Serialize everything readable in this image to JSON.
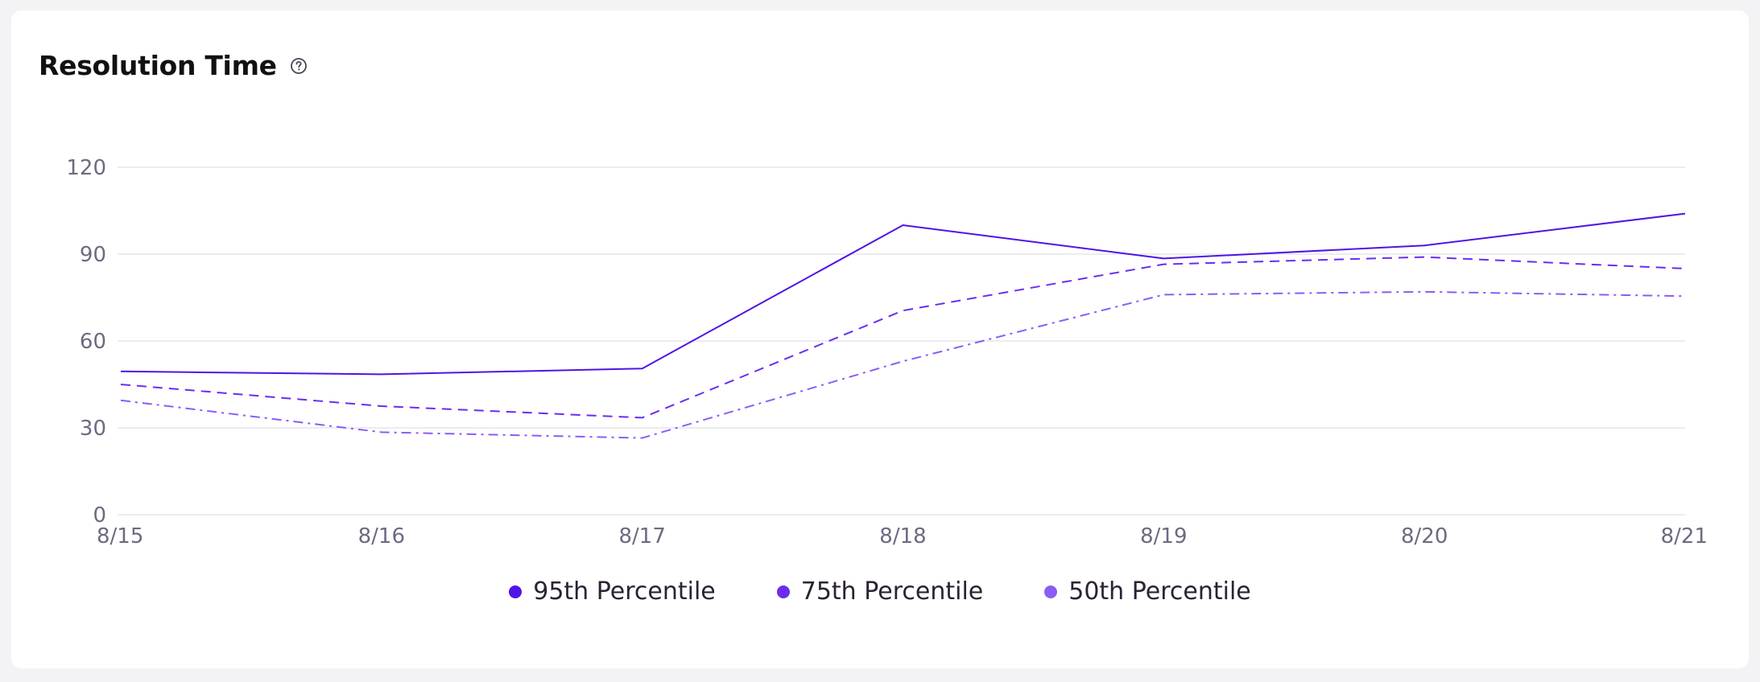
{
  "widget": {
    "title": "Resolution Time",
    "help_icon": "question-circle-icon"
  },
  "colors": {
    "p95": "#4f14e6",
    "p75": "#6a2cf2",
    "p50": "#8b5cf6",
    "grid": "#e6e6ea",
    "axis_text": "#6e6a80"
  },
  "chart_data": {
    "type": "line",
    "title": "Resolution Time",
    "xlabel": "",
    "ylabel": "",
    "categories": [
      "8/15",
      "8/16",
      "8/17",
      "8/18",
      "8/19",
      "8/20",
      "8/21"
    ],
    "ylim": [
      0,
      120
    ],
    "yticks": [
      0,
      30,
      60,
      90,
      120
    ],
    "grid": true,
    "legend_position": "bottom-center",
    "series": [
      {
        "name": "95th Percentile",
        "values": [
          49.5,
          48.5,
          50.5,
          100,
          88.5,
          93,
          104
        ],
        "style": "solid",
        "color": "#4f14e6"
      },
      {
        "name": "75th Percentile",
        "values": [
          45,
          37.5,
          33.5,
          70.5,
          86.5,
          89,
          85
        ],
        "style": "dashed",
        "color": "#6a2cf2"
      },
      {
        "name": "50th Percentile",
        "values": [
          39.5,
          28.5,
          26.5,
          53,
          76,
          77,
          75.5
        ],
        "style": "dashdot",
        "color": "#8b5cf6"
      }
    ]
  }
}
